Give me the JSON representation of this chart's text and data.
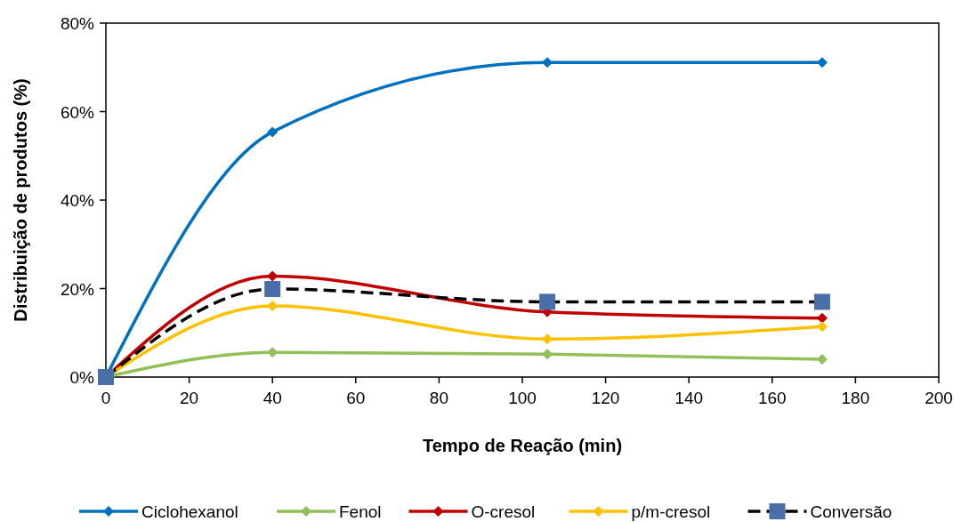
{
  "chart_data": {
    "type": "line",
    "xlabel": "Tempo de Reação (min)",
    "ylabel": "Distribuição de produtos (%)",
    "xlim": [
      0,
      200
    ],
    "xticks": [
      0,
      20,
      40,
      60,
      80,
      100,
      120,
      140,
      160,
      180,
      200
    ],
    "ylim": [
      0,
      80
    ],
    "yticks": [
      {
        "value": 0,
        "label": "0%"
      },
      {
        "value": 20,
        "label": "20%"
      },
      {
        "value": 40,
        "label": "40%"
      },
      {
        "value": 60,
        "label": "60%"
      },
      {
        "value": 80,
        "label": "80%"
      }
    ],
    "grid": false,
    "legend": "bottom",
    "series": [
      {
        "name": "Ciclohexanol",
        "color": "#0070c0",
        "marker": "diamond",
        "line_style": "solid",
        "x": [
          0,
          40,
          106,
          172
        ],
        "values": [
          0,
          55.4,
          71.1,
          71.1
        ]
      },
      {
        "name": "Fenol",
        "color": "#92bf5a",
        "marker": "diamond",
        "line_style": "solid",
        "x": [
          0,
          40,
          106,
          172
        ],
        "values": [
          0,
          5.6,
          5.2,
          4.0
        ]
      },
      {
        "name": "O-cresol",
        "color": "#c00000",
        "marker": "diamond",
        "line_style": "solid",
        "x": [
          0,
          40,
          106,
          172
        ],
        "values": [
          0,
          22.8,
          14.7,
          13.3
        ]
      },
      {
        "name": "p/m-cresol",
        "color": "#ffc000",
        "marker": "diamond",
        "line_style": "solid",
        "x": [
          0,
          40,
          106,
          172
        ],
        "values": [
          0,
          16.1,
          8.6,
          11.4
        ]
      },
      {
        "name": "Conversão",
        "color": "#000000",
        "colors": [
          "#4a6fa8",
          "#4a6fa8",
          "#4a6fa8",
          "#4a6fa8"
        ],
        "marker": "square",
        "line_style": "dashed",
        "x": [
          0,
          40,
          106,
          172
        ],
        "values": [
          0,
          19.9,
          17.0,
          17.0
        ]
      }
    ]
  }
}
